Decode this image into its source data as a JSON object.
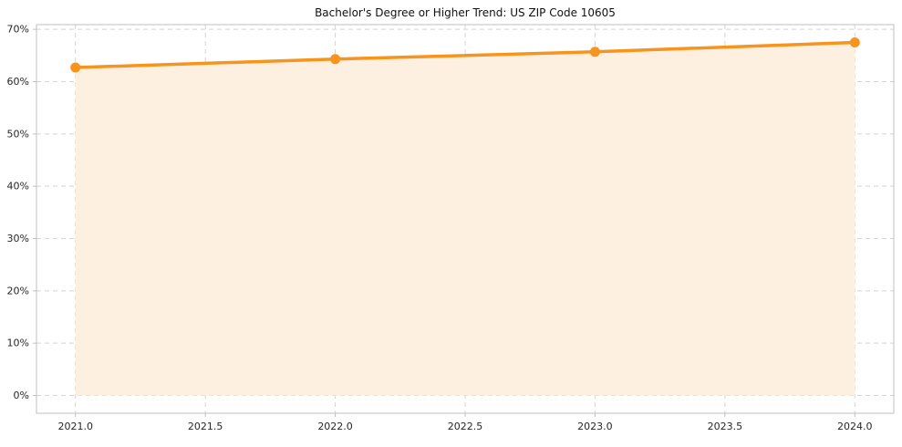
{
  "chart_data": {
    "type": "line",
    "title": "Bachelor's Degree or Higher Trend: US ZIP Code 10605",
    "x": [
      2021,
      2022,
      2023,
      2024
    ],
    "values": [
      62.7,
      64.3,
      65.7,
      67.5
    ],
    "x_ticks": [
      {
        "value": 2021.0,
        "label": "2021.0"
      },
      {
        "value": 2021.5,
        "label": "2021.5"
      },
      {
        "value": 2022.0,
        "label": "2022.0"
      },
      {
        "value": 2022.5,
        "label": "2022.5"
      },
      {
        "value": 2023.0,
        "label": "2023.0"
      },
      {
        "value": 2023.5,
        "label": "2023.5"
      },
      {
        "value": 2024.0,
        "label": "2024.0"
      }
    ],
    "y_ticks": [
      {
        "value": 0,
        "label": "0%"
      },
      {
        "value": 10,
        "label": "10%"
      },
      {
        "value": 20,
        "label": "20%"
      },
      {
        "value": 30,
        "label": "30%"
      },
      {
        "value": 40,
        "label": "40%"
      },
      {
        "value": 50,
        "label": "50%"
      },
      {
        "value": 60,
        "label": "60%"
      },
      {
        "value": 70,
        "label": "70%"
      }
    ],
    "xlim": [
      2020.85,
      2024.15
    ],
    "ylim": [
      -3.4,
      70.9
    ],
    "fill_baseline": 0,
    "grid": "dashed",
    "legend": "none",
    "colors": {
      "line": "#f7941d",
      "marker": "#f7941d",
      "fill": "#fdf0e1",
      "grid": "#d4d4d4",
      "spine": "#bfbfbf",
      "text": "#262626",
      "title": "#111111",
      "background": "#ffffff"
    }
  }
}
